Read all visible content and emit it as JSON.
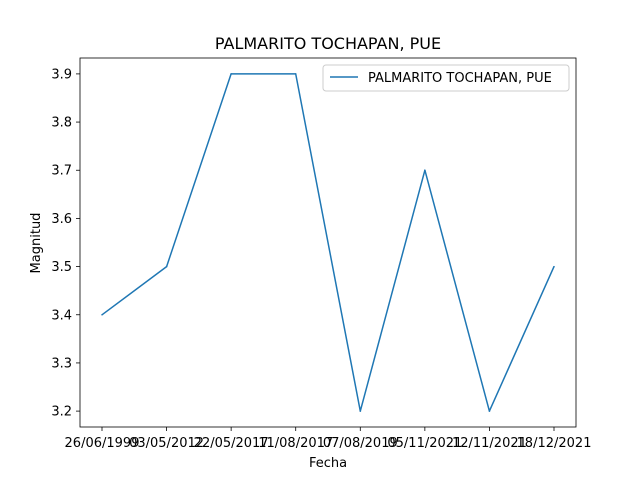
{
  "chart_data": {
    "type": "line",
    "title": "PALMARITO TOCHAPAN, PUE",
    "xlabel": "Fecha",
    "ylabel": "Magnitud",
    "categories": [
      "26/06/1999",
      "03/05/2012",
      "22/05/2017",
      "11/08/2017",
      "07/08/2019",
      "05/11/2021",
      "12/11/2021",
      "18/12/2021"
    ],
    "series": [
      {
        "name": "PALMARITO TOCHAPAN, PUE",
        "values": [
          3.4,
          3.5,
          3.9,
          3.9,
          3.2,
          3.7,
          3.2,
          3.5
        ],
        "color": "#1f77b4"
      }
    ],
    "ylim": [
      3.167,
      3.933
    ],
    "yticks": [
      "3.2",
      "3.3",
      "3.4",
      "3.5",
      "3.6",
      "3.7",
      "3.8",
      "3.9"
    ],
    "grid": false,
    "legend_position": "top-right"
  }
}
